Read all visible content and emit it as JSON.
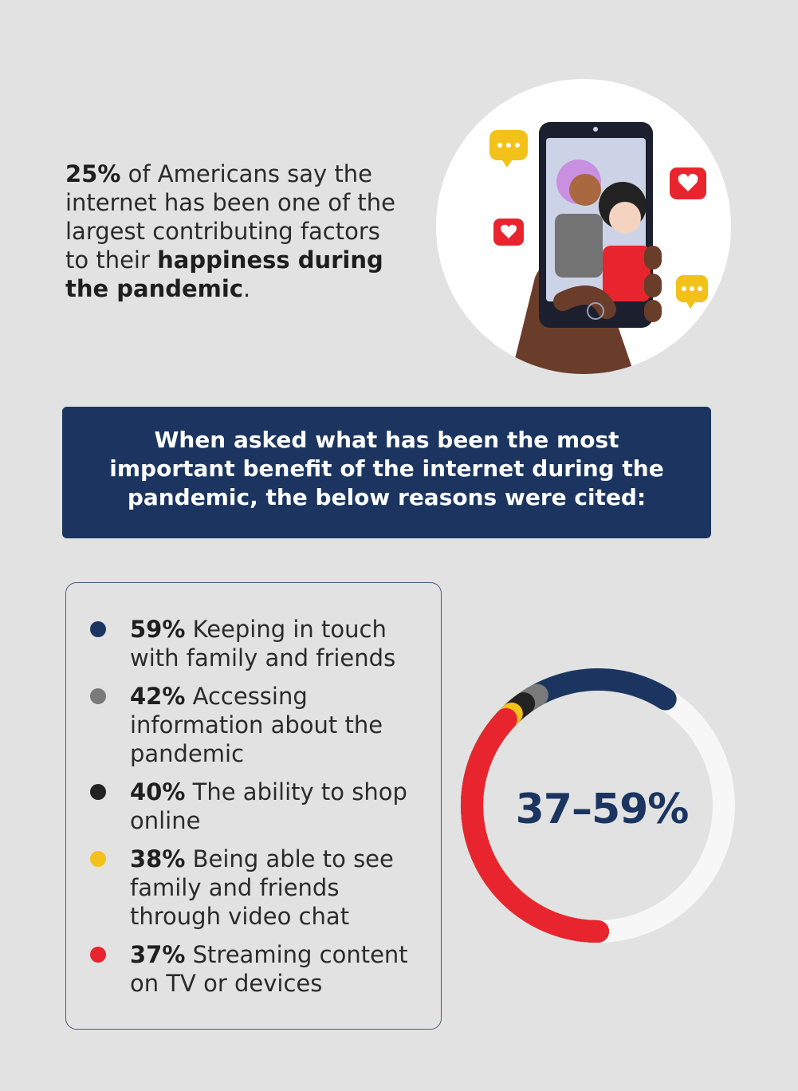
{
  "intro": {
    "pct": "25%",
    "text1": " of Americans say the internet has been one of the largest contributing factors to their ",
    "bold": "happiness during the pandemic",
    "end": "."
  },
  "banner": {
    "text": "When asked what has been the most important benefit of the internet during the pandemic, the below reasons were cited:"
  },
  "chart_data": {
    "type": "donut",
    "center_label": "37–59%",
    "series": [
      {
        "name": "Keeping in touch with family and friends",
        "value": 59,
        "color": "#1b3560"
      },
      {
        "name": "Accessing information about the pandemic",
        "value": 42,
        "color": "#7a7a7a"
      },
      {
        "name": "The ability to shop online",
        "value": 40,
        "color": "#222222"
      },
      {
        "name": "Being able to see family and friends through video chat",
        "value": 38,
        "color": "#f2c21b"
      },
      {
        "name": "Streaming content on TV or devices",
        "value": 37,
        "color": "#e8252f"
      }
    ],
    "track_color": "#f7f7f7"
  },
  "legend": [
    {
      "pct": "59%",
      "text": " Keeping in touch with family and friends",
      "color": "#1b3560"
    },
    {
      "pct": "42%",
      "text": " Accessing information about the pandemic",
      "color": "#7a7a7a"
    },
    {
      "pct": "40%",
      "text": " The ability to shop online",
      "color": "#222222"
    },
    {
      "pct": "38%",
      "text": " Being able to see family and friends through video chat",
      "color": "#f2c21b"
    },
    {
      "pct": "37%",
      "text": " Streaming content on TV or devices",
      "color": "#e8252f"
    }
  ]
}
